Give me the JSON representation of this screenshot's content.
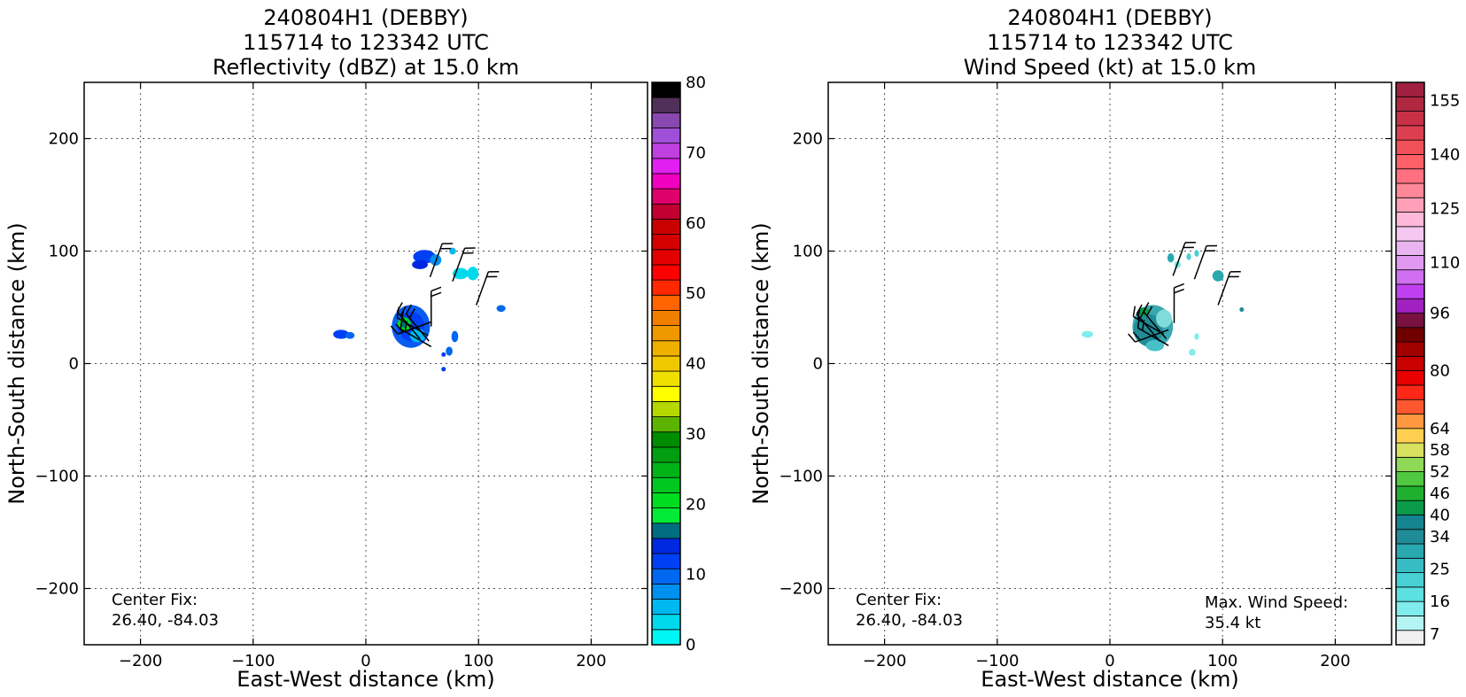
{
  "chart_data": [
    {
      "type": "heatmap",
      "title_lines": [
        "240804H1 (DEBBY)",
        "115714 to 123342 UTC",
        "Reflectivity (dBZ) at 15.0 km"
      ],
      "xlabel": "East-West distance (km)",
      "ylabel": "North-South distance (km)",
      "xlim": [
        -250,
        250
      ],
      "ylim": [
        -250,
        250
      ],
      "xticks": [
        -200,
        -100,
        0,
        100,
        200
      ],
      "yticks": [
        -200,
        -100,
        0,
        100,
        200
      ],
      "grid": true,
      "annotation_left": [
        "Center Fix:",
        "26.40, -84.03"
      ],
      "annotation_right": [],
      "colorbar": {
        "min": 0,
        "max": 80,
        "tick_values": [
          0,
          10,
          20,
          30,
          40,
          50,
          60,
          70,
          80
        ],
        "tick_labels": [
          "0",
          "10",
          "20",
          "30",
          "40",
          "50",
          "60",
          "70",
          "80"
        ],
        "colors": [
          "#00f5f5",
          "#00d8ec",
          "#00b8f0",
          "#0090f0",
          "#0068f0",
          "#0040f5",
          "#0028e0",
          "#006e80",
          "#00ea36",
          "#00dc20",
          "#00c820",
          "#00b418",
          "#009e10",
          "#008c00",
          "#5cb400",
          "#b4d800",
          "#ffff00",
          "#f0e000",
          "#f0c800",
          "#f0b000",
          "#f09800",
          "#f07f00",
          "#ff6400",
          "#ff2800",
          "#ff0000",
          "#e40000",
          "#d40000",
          "#c80000",
          "#c00030",
          "#e0006c",
          "#f000c0",
          "#e020f0",
          "#c040e0",
          "#a050d8",
          "#8848b0",
          "#503058",
          "#000000"
        ]
      },
      "echo_cells": [
        {
          "x": 40,
          "y": 33,
          "rx": 17,
          "ry": 19,
          "color": "#0a5cf0"
        },
        {
          "x": 40,
          "y": 33,
          "rx": 12,
          "ry": 13,
          "color": "#0040f5"
        },
        {
          "x": 34,
          "y": 35,
          "rx": 6,
          "ry": 6,
          "color": "#00d820"
        },
        {
          "x": 34,
          "y": 35,
          "rx": 3,
          "ry": 3,
          "color": "#006e80"
        },
        {
          "x": 46,
          "y": 25,
          "rx": 7,
          "ry": 6,
          "color": "#00b8f0"
        },
        {
          "x": 52,
          "y": 95,
          "rx": 10,
          "ry": 6,
          "color": "#0040f5"
        },
        {
          "x": 48,
          "y": 88,
          "rx": 7,
          "ry": 4,
          "color": "#0028e0"
        },
        {
          "x": 62,
          "y": 92,
          "rx": 5,
          "ry": 5,
          "color": "#0090f0"
        },
        {
          "x": 77,
          "y": 100,
          "rx": 3,
          "ry": 3,
          "color": "#00b8f0"
        },
        {
          "x": 84,
          "y": 80,
          "rx": 7,
          "ry": 5,
          "color": "#00d8ec"
        },
        {
          "x": 95,
          "y": 80,
          "rx": 5,
          "ry": 6,
          "color": "#00d8ec"
        },
        {
          "x": 120,
          "y": 49,
          "rx": 4,
          "ry": 3,
          "color": "#0068f0"
        },
        {
          "x": -22,
          "y": 26,
          "rx": 7,
          "ry": 4,
          "color": "#0040f5"
        },
        {
          "x": -14,
          "y": 25,
          "rx": 4,
          "ry": 3,
          "color": "#0068f0"
        },
        {
          "x": 79,
          "y": 24,
          "rx": 3,
          "ry": 5,
          "color": "#0068f0"
        },
        {
          "x": 74,
          "y": 11,
          "rx": 3,
          "ry": 4,
          "color": "#0068f0"
        },
        {
          "x": 69,
          "y": 8,
          "rx": 2,
          "ry": 2,
          "color": "#0040f5"
        },
        {
          "x": 69,
          "y": -5,
          "rx": 2,
          "ry": 2,
          "color": "#0040f5"
        }
      ],
      "barbs": [
        {
          "x": 58,
          "y": 33,
          "dir": 360,
          "flags": 2
        },
        {
          "x": 58,
          "y": 37,
          "dir": 250,
          "flags": 2
        },
        {
          "x": 55,
          "y": 25,
          "dir": 300,
          "flags": 2
        },
        {
          "x": 56,
          "y": 20,
          "dir": 320,
          "flags": 2
        },
        {
          "x": 58,
          "y": 15,
          "dir": 300,
          "flags": 2
        },
        {
          "x": 48,
          "y": 22,
          "dir": 320,
          "flags": 2
        },
        {
          "x": 57,
          "y": 77,
          "dir": 20,
          "flags": 2
        },
        {
          "x": 77,
          "y": 73,
          "dir": 20,
          "flags": 2
        },
        {
          "x": 98,
          "y": 52,
          "dir": 20,
          "flags": 2
        }
      ]
    },
    {
      "type": "heatmap",
      "title_lines": [
        "240804H1 (DEBBY)",
        "115714 to 123342 UTC",
        "Wind Speed (kt) at 15.0 km"
      ],
      "xlabel": "East-West distance (km)",
      "ylabel": "North-South distance (km)",
      "xlim": [
        -250,
        250
      ],
      "ylim": [
        -250,
        250
      ],
      "xticks": [
        -200,
        -100,
        0,
        100,
        200
      ],
      "yticks": [
        -200,
        -100,
        0,
        100,
        200
      ],
      "grid": true,
      "annotation_left": [
        "Center Fix:",
        "26.40, -84.03"
      ],
      "annotation_right": [
        "Max. Wind Speed:",
        "35.4 kt"
      ],
      "colorbar": {
        "min": 4,
        "max": 160,
        "tick_values": [
          7,
          16,
          25,
          34,
          40,
          46,
          52,
          58,
          64,
          80,
          96,
          110,
          125,
          140,
          155
        ],
        "tick_labels": [
          "7",
          "16",
          "25",
          "34",
          "40",
          "46",
          "52",
          "58",
          "64",
          "80",
          "96",
          "110",
          "125",
          "140",
          "155"
        ],
        "colors": [
          "#f0f0f0",
          "#b4f4f4",
          "#80ecec",
          "#5ce0e0",
          "#48d0d4",
          "#38bcc4",
          "#2aa8b0",
          "#208c98",
          "#168490",
          "#0a9a4a",
          "#20b030",
          "#50c840",
          "#90d858",
          "#d8e060",
          "#ffd050",
          "#ff9840",
          "#ff5830",
          "#ff2818",
          "#e80000",
          "#c80000",
          "#a00000",
          "#700000",
          "#781040",
          "#a020c0",
          "#c040f0",
          "#d070f0",
          "#e098f0",
          "#eab4f0",
          "#f4c8f0",
          "#ffb8d8",
          "#ffa0b8",
          "#ff8898",
          "#ff7080",
          "#ff6068",
          "#f05058",
          "#dc4050",
          "#c83048",
          "#b02840",
          "#a02040"
        ]
      },
      "echo_cells": [
        {
          "x": 38,
          "y": 33,
          "rx": 18,
          "ry": 19,
          "color": "#38a8b0"
        },
        {
          "x": 34,
          "y": 30,
          "rx": 13,
          "ry": 14,
          "color": "#208c98"
        },
        {
          "x": 48,
          "y": 40,
          "rx": 7,
          "ry": 8,
          "color": "#80dcdc"
        },
        {
          "x": 30,
          "y": 46,
          "rx": 5,
          "ry": 4,
          "color": "#0a9a4a"
        },
        {
          "x": 40,
          "y": 16,
          "rx": 8,
          "ry": 5,
          "color": "#48c0c8"
        },
        {
          "x": 54,
          "y": 94,
          "rx": 3,
          "ry": 4,
          "color": "#2aa8b0"
        },
        {
          "x": 60,
          "y": 88,
          "rx": 3,
          "ry": 3,
          "color": "#80ecec"
        },
        {
          "x": 70,
          "y": 95,
          "rx": 2,
          "ry": 3,
          "color": "#48d0d4"
        },
        {
          "x": 77,
          "y": 98,
          "rx": 2,
          "ry": 3,
          "color": "#48d0d4"
        },
        {
          "x": 96,
          "y": 78,
          "rx": 5,
          "ry": 5,
          "color": "#2aa8b0"
        },
        {
          "x": 117,
          "y": 48,
          "rx": 2,
          "ry": 2,
          "color": "#208c98"
        },
        {
          "x": -20,
          "y": 26,
          "rx": 5,
          "ry": 3,
          "color": "#80ecec"
        },
        {
          "x": 77,
          "y": 24,
          "rx": 2,
          "ry": 3,
          "color": "#80ecec"
        },
        {
          "x": 73,
          "y": 10,
          "rx": 3,
          "ry": 3,
          "color": "#80ecec"
        }
      ],
      "barbs": [
        {
          "x": 57,
          "y": 36,
          "dir": 360,
          "flags": 2
        },
        {
          "x": 52,
          "y": 30,
          "dir": 250,
          "flags": 2
        },
        {
          "x": 48,
          "y": 26,
          "dir": 300,
          "flags": 2
        },
        {
          "x": 50,
          "y": 22,
          "dir": 320,
          "flags": 2
        },
        {
          "x": 52,
          "y": 16,
          "dir": 300,
          "flags": 2
        },
        {
          "x": 44,
          "y": 20,
          "dir": 320,
          "flags": 2
        },
        {
          "x": 56,
          "y": 78,
          "dir": 20,
          "flags": 2
        },
        {
          "x": 75,
          "y": 75,
          "dir": 20,
          "flags": 2
        },
        {
          "x": 96,
          "y": 52,
          "dir": 20,
          "flags": 2
        }
      ]
    }
  ]
}
